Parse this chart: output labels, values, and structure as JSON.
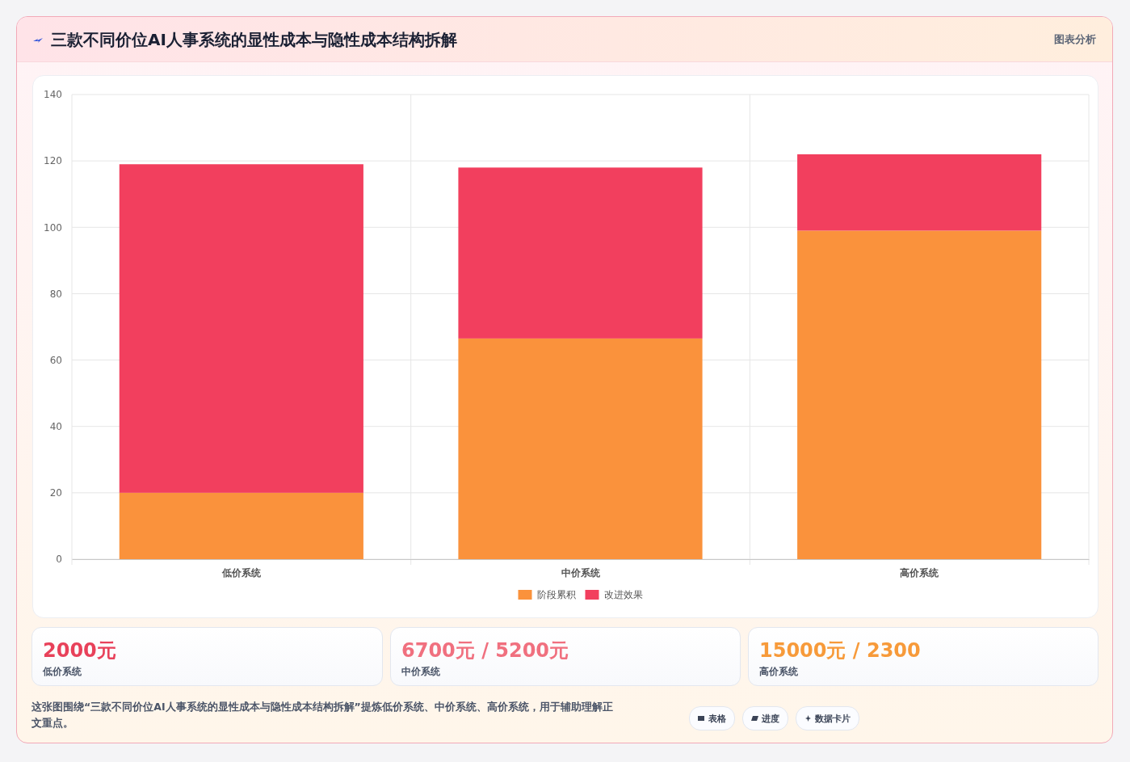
{
  "chart_data": {
    "type": "bar",
    "title": "三款不同价位AI人事系统的显性成本与隐性成本结构拆解",
    "categories": [
      "低价系统",
      "中价系统",
      "高价系统"
    ],
    "stacked": true,
    "series": [
      {
        "name": "阶段累积",
        "color": "#fa923c",
        "values": [
          20,
          66.5,
          99
        ]
      },
      {
        "name": "改进效果",
        "color": "#f23f5e",
        "values": [
          99,
          51.5,
          23
        ]
      }
    ],
    "ylim": [
      0,
      140
    ],
    "yticks": [
      0,
      20,
      40,
      60,
      80,
      100,
      120,
      140
    ],
    "grid": true,
    "legend": "bottom",
    "annotations": [
      "图表分析",
      "2000元",
      "低价系统",
      "6700元 / 5200元",
      "中价系统",
      "15000元 / 2300",
      "高价系统",
      "这张图围绕“三款不同价位AI人事系统的显性成本与隐性成本结构拆解”提炼低价系统、中价系统、高价系统，用于辅助理解正文重点。",
      "表格",
      "进度",
      "数据卡片"
    ]
  }
}
